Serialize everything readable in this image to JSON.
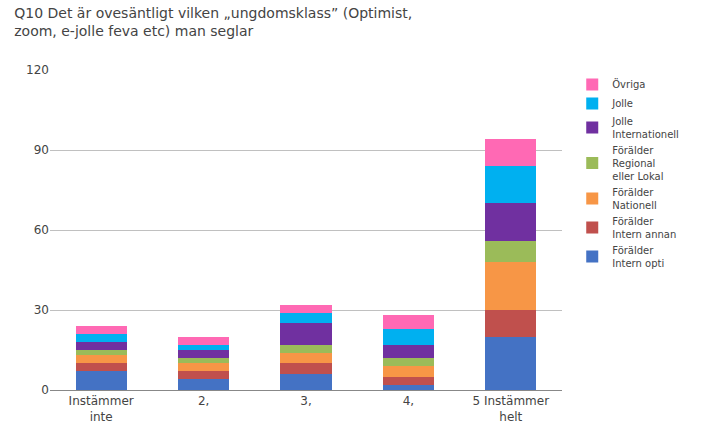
{
  "chart_data": {
    "type": "bar",
    "title": "Q10 Det är ovesäntligt vilken „ungdomsklass” (Optimist,\nzoom, e-jolle feva etc) man seglar",
    "categories": [
      "Instämmer\ninte",
      "2,",
      "3,",
      "4,",
      "5 Instämmer\nhelt"
    ],
    "series": [
      {
        "name": "Förälder\nIntern opti",
        "color": "#4472C4",
        "values": [
          7,
          4,
          6,
          2,
          20
        ]
      },
      {
        "name": "Förälder\nIntern annan",
        "color": "#C0504D",
        "values": [
          3,
          3,
          4,
          3,
          10
        ]
      },
      {
        "name": "Förälder\nNationell",
        "color": "#F79646",
        "values": [
          3,
          3,
          4,
          4,
          18
        ]
      },
      {
        "name": "Förälder\nRegional\neller Lokal",
        "color": "#9BBB59",
        "values": [
          2,
          2,
          3,
          3,
          8
        ]
      },
      {
        "name": "Jolle\nInternationell",
        "color": "#7030A0",
        "values": [
          3,
          3,
          8,
          5,
          14
        ]
      },
      {
        "name": "Jolle",
        "color": "#00B0F0",
        "values": [
          3,
          2,
          4,
          6,
          14
        ]
      },
      {
        "name": "Övriga",
        "color": "#FF69B4",
        "values": [
          3,
          3,
          3,
          5,
          10
        ]
      }
    ],
    "stacked": true,
    "ylim": [
      0,
      120
    ],
    "yticks": [
      0,
      30,
      60,
      90,
      120
    ],
    "grid": true,
    "legend": "right"
  }
}
